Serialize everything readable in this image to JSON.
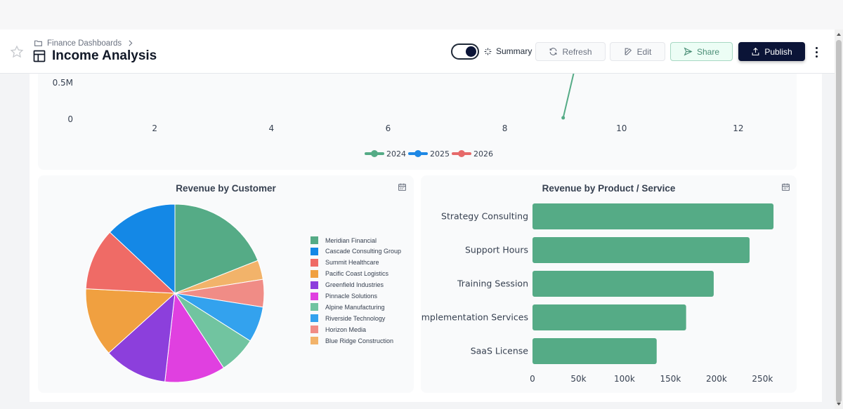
{
  "header": {
    "breadcrumb": "Finance Dashboards",
    "title": "Income Analysis",
    "summary_label": "Summary",
    "refresh_label": "Refresh",
    "edit_label": "Edit",
    "share_label": "Share",
    "publish_label": "Publish"
  },
  "line_chart": {
    "type": "line",
    "y_ticks": [
      "0.5M",
      "0"
    ],
    "x_ticks": [
      "2",
      "4",
      "6",
      "8",
      "10",
      "12"
    ],
    "xlim": [
      0,
      13
    ],
    "legend_position": "bottom-center",
    "series": [
      {
        "name": "2024",
        "color": "#55ab86",
        "points": [
          [
            9,
            0.02
          ],
          [
            9.2,
            0.7
          ]
        ]
      },
      {
        "name": "2025",
        "color": "#1e88e5",
        "points": []
      },
      {
        "name": "2026",
        "color": "#e66a6a",
        "points": []
      }
    ]
  },
  "pie_chart": {
    "type": "pie",
    "title": "Revenue by Customer",
    "legend_position": "right",
    "slices": [
      {
        "label": "Meridian Financial",
        "value": 19.0,
        "color": "#55ab86"
      },
      {
        "label": "Blue Ridge Construction",
        "value": 3.5,
        "color": "#f2b36a"
      },
      {
        "label": "Horizon Media",
        "value": 5.0,
        "color": "#f08c86"
      },
      {
        "label": "Riverside Technology",
        "value": 6.5,
        "color": "#33a2ee"
      },
      {
        "label": "Alpine Manufacturing",
        "value": 6.8,
        "color": "#71c4a0"
      },
      {
        "label": "Pinnacle Solutions",
        "value": 11.0,
        "color": "#e040e0"
      },
      {
        "label": "Greenfield Industries",
        "value": 11.5,
        "color": "#8c3fdc"
      },
      {
        "label": "Pacific Coast Logistics",
        "value": 12.5,
        "color": "#f0a040"
      },
      {
        "label": "Summit Healthcare",
        "value": 11.2,
        "color": "#ef6b66"
      },
      {
        "label": "Cascade Consulting Group",
        "value": 13.0,
        "color": "#1488e6"
      }
    ],
    "legend": [
      {
        "label": "Meridian Financial",
        "color": "#55ab86"
      },
      {
        "label": "Cascade Consulting Group",
        "color": "#1488e6"
      },
      {
        "label": "Summit Healthcare",
        "color": "#ef6b66"
      },
      {
        "label": "Pacific Coast Logistics",
        "color": "#f0a040"
      },
      {
        "label": "Greenfield Industries",
        "color": "#8c3fdc"
      },
      {
        "label": "Pinnacle Solutions",
        "color": "#e040e0"
      },
      {
        "label": "Alpine Manufacturing",
        "color": "#71c4a0"
      },
      {
        "label": "Riverside Technology",
        "color": "#33a2ee"
      },
      {
        "label": "Horizon Media",
        "color": "#f08c86"
      },
      {
        "label": "Blue Ridge Construction",
        "color": "#f2b36a"
      }
    ]
  },
  "chart_data": {
    "type": "bar",
    "orientation": "horizontal",
    "title": "Revenue by Product / Service",
    "categories": [
      "Strategy Consulting",
      "Support Hours",
      "Training Session",
      "Implementation Services",
      "SaaS License"
    ],
    "values": [
      262000,
      236000,
      197000,
      167000,
      135000
    ],
    "x_ticks": [
      "0",
      "50k",
      "100k",
      "150k",
      "200k",
      "250k"
    ],
    "xlim": [
      0,
      265000
    ],
    "color": "#55ab86"
  }
}
